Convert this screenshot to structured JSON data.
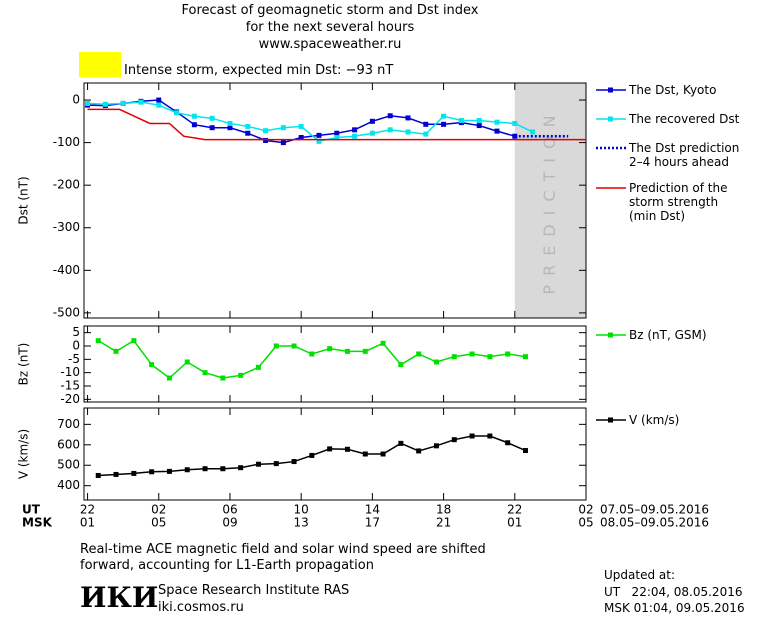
{
  "header": {
    "title": "Forecast of geomagnetic storm and Dst index",
    "subtitle": "for the next several hours",
    "source": "www.spaceweather.ru",
    "storm_label": "Intense storm, expected min Dst: −93 nT",
    "storm_color": "#ffff00"
  },
  "chart_data": [
    {
      "type": "line",
      "ylabel": "Dst (nT)",
      "xlim": [
        -0.2,
        28
      ],
      "ylim": [
        -512,
        40
      ],
      "yticks": [
        0,
        -100,
        -200,
        -300,
        -400,
        -500
      ],
      "prediction_region": [
        24,
        28
      ],
      "prediction_label": "PREDICTION",
      "series": [
        {
          "name": "The Dst, Kyoto",
          "color": "#0000d0",
          "marker": true,
          "dash": false,
          "x": [
            0,
            1,
            2,
            3,
            4,
            5,
            6,
            7,
            8,
            9,
            10,
            11,
            12,
            13,
            14,
            15,
            16,
            17,
            18,
            19,
            20,
            21,
            22,
            23,
            24
          ],
          "values": [
            -12,
            -13,
            -8,
            -3,
            0,
            -28,
            -58,
            -65,
            -65,
            -78,
            -95,
            -100,
            -88,
            -83,
            -78,
            -70,
            -50,
            -37,
            -42,
            -57,
            -57,
            -53,
            -60,
            -73,
            -85
          ]
        },
        {
          "name": "The recovered Dst",
          "color": "#00e5ee",
          "marker": true,
          "dash": false,
          "x": [
            0,
            1,
            2,
            3,
            4,
            5,
            6,
            7,
            8,
            9,
            10,
            11,
            12,
            13,
            14,
            15,
            16,
            17,
            18,
            19,
            20,
            21,
            22,
            23,
            24,
            25
          ],
          "values": [
            -8,
            -10,
            -8,
            -5,
            -12,
            -30,
            -38,
            -43,
            -55,
            -62,
            -72,
            -65,
            -62,
            -97,
            -88,
            -85,
            -78,
            -70,
            -75,
            -80,
            -38,
            -48,
            -48,
            -52,
            -55,
            -75
          ]
        },
        {
          "name": "The Dst prediction\n2–4 hours ahead",
          "color": "#0000d0",
          "marker": false,
          "dash": true,
          "x": [
            24,
            27
          ],
          "values": [
            -85,
            -85
          ]
        },
        {
          "name": "Prediction of the\nstorm strength\n(min Dst)",
          "color": "#e00000",
          "marker": false,
          "dash": false,
          "x": [
            0,
            1.8,
            3.5,
            4.6,
            5.4,
            6.6,
            28
          ],
          "values": [
            -22,
            -22,
            -55,
            -55,
            -85,
            -93,
            -93
          ]
        }
      ]
    },
    {
      "type": "line",
      "ylabel": "Bz (nT)",
      "xlim": [
        -0.2,
        28
      ],
      "ylim": [
        -21,
        7.5
      ],
      "yticks": [
        5,
        0,
        -5,
        -10,
        -15,
        -20
      ],
      "series": [
        {
          "name": "Bz (nT, GSM)",
          "color": "#00e000",
          "marker": true,
          "dash": false,
          "x": [
            0.6,
            1.6,
            2.6,
            3.6,
            4.6,
            5.6,
            6.6,
            7.6,
            8.6,
            9.6,
            10.6,
            11.6,
            12.6,
            13.6,
            14.6,
            15.6,
            16.6,
            17.6,
            18.6,
            19.6,
            20.6,
            21.6,
            22.6,
            23.6,
            24.6
          ],
          "values": [
            2,
            -2,
            2,
            -7,
            -12,
            -6,
            -10,
            -12,
            -11,
            -8,
            0,
            0,
            -3,
            -1,
            -2,
            -2,
            1,
            -7,
            -3,
            -6,
            -4,
            -3,
            -4,
            -3,
            -4
          ]
        }
      ]
    },
    {
      "type": "line",
      "ylabel": "V (km/s)",
      "xlim": [
        -0.2,
        28
      ],
      "ylim": [
        330,
        780
      ],
      "yticks": [
        400,
        500,
        600,
        700
      ],
      "xticks": [
        {
          "value": 0,
          "label": "22"
        },
        {
          "value": 4,
          "label": "02"
        },
        {
          "value": 8,
          "label": "06"
        },
        {
          "value": 12,
          "label": "10"
        },
        {
          "value": 16,
          "label": "14"
        },
        {
          "value": 20,
          "label": "18"
        },
        {
          "value": 24,
          "label": "22"
        },
        {
          "value": 28,
          "label": "02"
        }
      ],
      "msk_labels": [
        "01",
        "05",
        "09",
        "13",
        "17",
        "21",
        "01",
        "05"
      ],
      "ut_label": "UT",
      "msk_label": "MSK",
      "ut_range": "07.05–09.05.2016",
      "msk_range": "08.05–09.05.2016",
      "series": [
        {
          "name": "V (km/s)",
          "color": "#000000",
          "marker": true,
          "dash": false,
          "x": [
            0.6,
            1.6,
            2.6,
            3.6,
            4.6,
            5.6,
            6.6,
            7.6,
            8.6,
            9.6,
            10.6,
            11.6,
            12.6,
            13.6,
            14.6,
            15.6,
            16.6,
            17.6,
            18.6,
            19.6,
            20.6,
            21.6,
            22.6,
            23.6,
            24.6
          ],
          "values": [
            450,
            455,
            460,
            468,
            470,
            478,
            483,
            483,
            488,
            505,
            508,
            518,
            548,
            580,
            578,
            555,
            555,
            607,
            570,
            595,
            625,
            643,
            643,
            610,
            572
          ]
        }
      ]
    }
  ],
  "note": "Real-time ACE magnetic field and solar wind speed are shifted\nforward, accounting for L1-Earth propagation",
  "footer": {
    "logo": "ИКИ",
    "institute": "Space Research Institute RAS",
    "site": "iki.cosmos.ru",
    "updated": "Updated at:",
    "updated_ut": "UT   22:04, 08.05.2016",
    "updated_msk": "MSK 01:04, 09.05.2016"
  }
}
